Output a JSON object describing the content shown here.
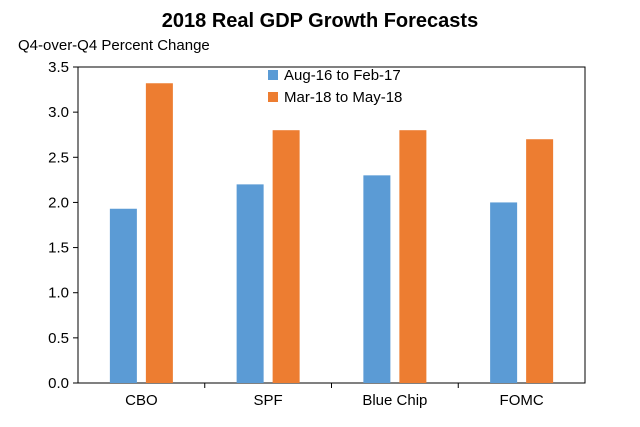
{
  "chart_data": {
    "type": "bar",
    "title": "2018 Real GDP Growth Forecasts",
    "ylabel": "Q4-over-Q4 Percent Change",
    "xlabel": "",
    "categories": [
      "CBO",
      "SPF",
      "Blue Chip",
      "FOMC"
    ],
    "series": [
      {
        "name": "Aug-16 to Feb-17",
        "color": "#5b9bd5",
        "values": [
          1.93,
          2.2,
          2.3,
          2.0
        ]
      },
      {
        "name": "Mar-18 to May-18",
        "color": "#ed7d31",
        "values": [
          3.32,
          2.8,
          2.8,
          2.7
        ]
      }
    ],
    "ylim": [
      0,
      3.5
    ],
    "yticks": [
      "0.0",
      "0.5",
      "1.0",
      "1.5",
      "2.0",
      "2.5",
      "3.0",
      "3.5"
    ],
    "grid": false,
    "legend_position": "top-center"
  }
}
